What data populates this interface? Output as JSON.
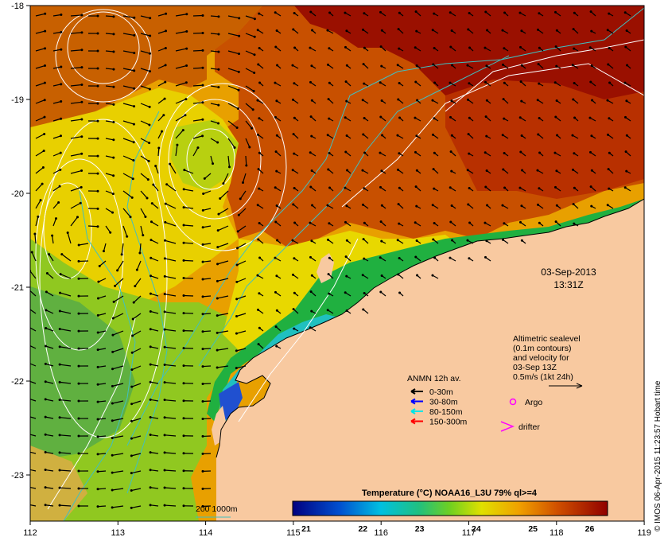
{
  "map": {
    "lon_ticks": [
      "112",
      "113",
      "114",
      "115",
      "116",
      "117",
      "118",
      "119"
    ],
    "lat_ticks": [
      "-18",
      "-19",
      "-20",
      "-21",
      "-22",
      "-23"
    ],
    "date_line1": "03-Sep-2013",
    "date_line2": "13:31Z",
    "altimetry_lines": [
      "Altimetric sealevel",
      "(0.1m contours)",
      "and velocity for",
      "03-Sep 13Z",
      "0.5m/s (1kt 24h)"
    ],
    "anmn_title": "ANMN 12h av.",
    "anmn_items": [
      {
        "label": "0-30m",
        "color": "#000000"
      },
      {
        "label": "30-80m",
        "color": "#0000ff"
      },
      {
        "label": "80-150m",
        "color": "#00e5e5"
      },
      {
        "label": "150-300m",
        "color": "#ff0000"
      }
    ],
    "argo_label": "Argo",
    "drifter_label": "drifter",
    "colorbar_title": "Temperature (°C) NOAA16_L3U 79% ql>=4",
    "colorbar_ticks": [
      "21",
      "22",
      "23",
      "24",
      "25",
      "26"
    ],
    "bathy_label": "200  1000m",
    "credit": "© IMOS 06-Apr-2015 11:23:57 Hobart time",
    "colors": {
      "land": "#f8c9a0",
      "cold": "#000080",
      "warm": "#8b0000",
      "contour": "#ffffff",
      "bathy": "#40c0c0",
      "argo": "#ff00ff"
    }
  }
}
